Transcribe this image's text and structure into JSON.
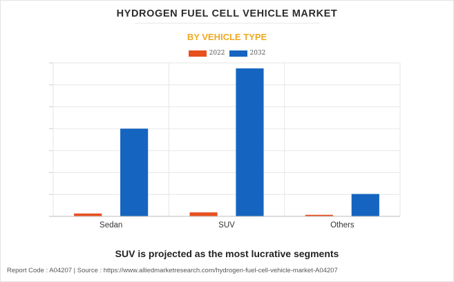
{
  "header": {
    "title": "HYDROGEN FUEL CELL VEHICLE MARKET",
    "subtitle": "BY VEHICLE TYPE"
  },
  "legend": {
    "items": [
      {
        "label": "2022",
        "color": "#e8501e"
      },
      {
        "label": "2032",
        "color": "#1565c0"
      }
    ]
  },
  "chart_data": {
    "type": "bar",
    "categories": [
      "Sedan",
      "SUV",
      "Others"
    ],
    "series": [
      {
        "name": "2022",
        "values": [
          0.13,
          0.18,
          0.07
        ],
        "color": "#e8501e"
      },
      {
        "name": "2032",
        "values": [
          4.0,
          6.75,
          1.02
        ],
        "color": "#1565c0"
      }
    ],
    "ylim": [
      0,
      7
    ],
    "grid": true,
    "y_tick_labels_visible": false,
    "legend_position": "top-center"
  },
  "headline": "SUV is projected as the most lucrative segments",
  "footer": "Report Code : A04207  |  Source : https://www.alliedmarketresearch.com/hydrogen-fuel-cell-vehicle-market-A04207"
}
